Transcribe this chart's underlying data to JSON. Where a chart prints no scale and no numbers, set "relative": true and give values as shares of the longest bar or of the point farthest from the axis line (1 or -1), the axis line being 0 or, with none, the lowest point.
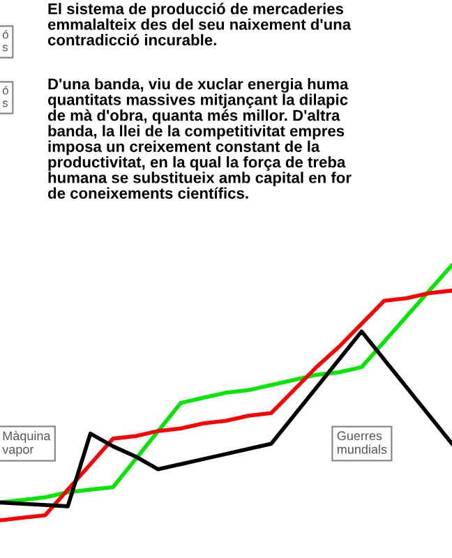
{
  "chart_data": {
    "type": "line",
    "relative": true,
    "tick_labels": false,
    "categories": [
      null,
      null,
      null,
      null,
      null,
      null,
      null,
      null,
      null,
      null,
      null,
      null,
      null,
      null,
      null,
      null,
      null,
      null,
      null,
      null,
      null
    ],
    "series": [
      {
        "color": "#00e600",
        "values": [
          0.07,
          0.08,
          0.09,
          0.11,
          0.12,
          0.13,
          0.24,
          0.35,
          0.46,
          0.48,
          0.5,
          0.51,
          0.53,
          0.55,
          0.57,
          0.58,
          0.6,
          0.7,
          0.8,
          0.9,
          1
        ]
      },
      {
        "color": "#ff0000",
        "values": [
          0,
          0.01,
          0.02,
          0.12,
          0.22,
          0.32,
          0.33,
          0.35,
          0.36,
          0.38,
          0.39,
          0.41,
          0.42,
          0.51,
          0.6,
          0.68,
          0.77,
          0.86,
          0.87,
          0.89,
          0.9
        ]
      },
      {
        "color": "#000000",
        "values": [
          0.07,
          0.065,
          0.06,
          0.055,
          0.34,
          0.29,
          0.25,
          0.2,
          0.22,
          0.24,
          0.26,
          0.28,
          0.3,
          0.41,
          0.52,
          0.63,
          0.74,
          0.63,
          0.52,
          0.41,
          0.3
        ]
      }
    ],
    "annotations": [
      "El sistema de producció de mercaderies\nemmalalteix des del seu naixement d'una\ncontradicció incurable.",
      "D'una banda, viu de xuclar energia huma\nquantitats massives mitjançant la dilapic\nde mà d'obra, quanta més millor. D'altra\nbanda, la llei de la competitivitat empres\nimposa un creixement constant de la\nproductivitat, en la qual la força de treba\nhumana se substitueix amb capital en for\nde coneixements científics.",
      "ó\ns",
      "ó\ns",
      "Màquina\nvapor",
      "Guerres\nmundials"
    ]
  }
}
